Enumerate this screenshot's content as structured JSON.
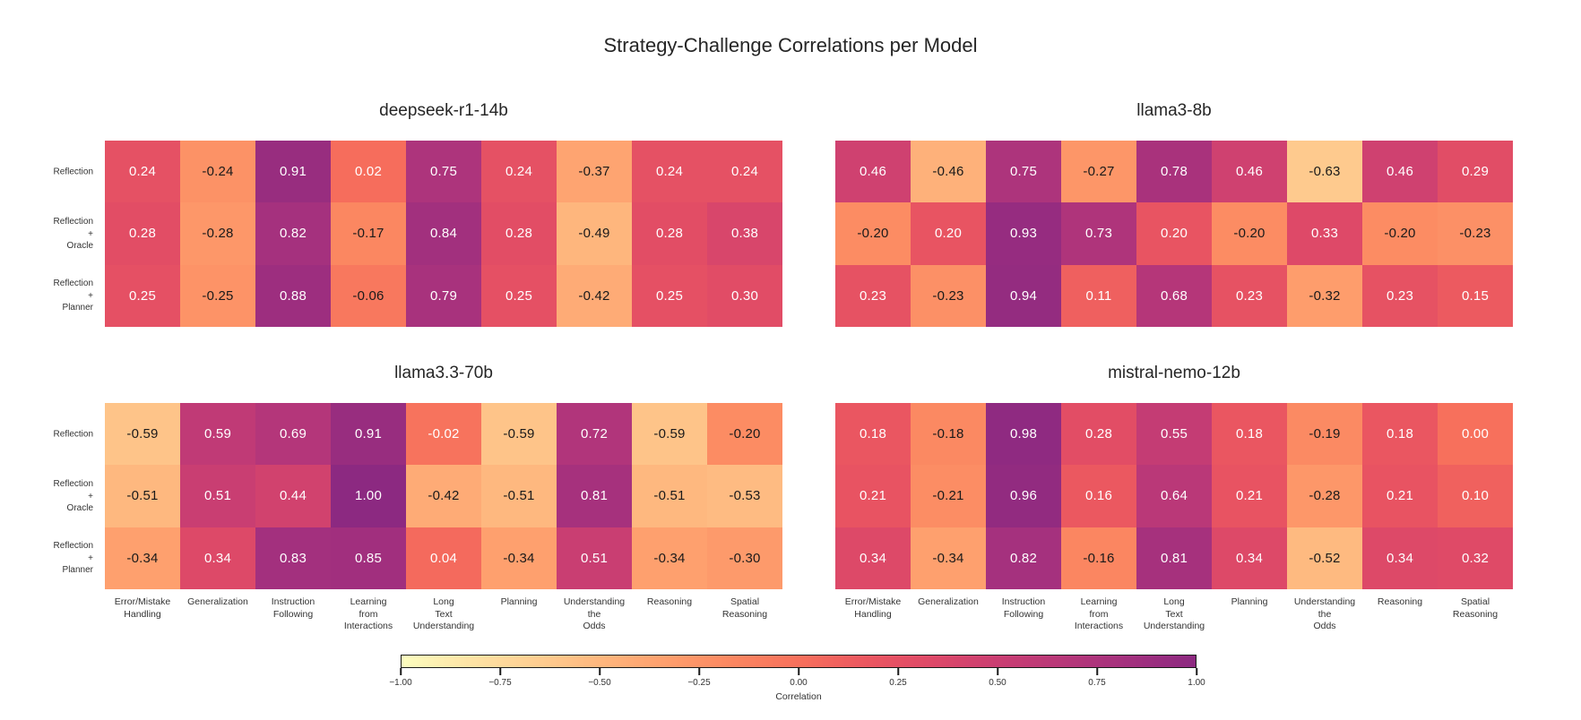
{
  "figure": {
    "title": "Strategy-Challenge Correlations per Model"
  },
  "axes": {
    "strategies": [
      "Reflection",
      "Reflection + Oracle",
      "Reflection + Planner"
    ],
    "strategy_display": [
      "Reflection",
      "Reflection\n+\nOracle",
      "Reflection\n+\nPlanner"
    ],
    "challenges": [
      "Error/Mistake Handling",
      "Generalization",
      "Instruction Following",
      "Learning from Interactions",
      "Long Text Understanding",
      "Planning",
      "Understanding the Odds",
      "Reasoning",
      "Spatial Reasoning"
    ],
    "challenge_display": [
      "Error/Mistake\nHandling",
      "Generalization",
      "Instruction\nFollowing",
      "Learning\nfrom\nInteractions",
      "Long\nText\nUnderstanding",
      "Planning",
      "Understanding\nthe\nOdds",
      "Reasoning",
      "Spatial\nReasoning"
    ]
  },
  "chart_data": {
    "type": "heatmap",
    "title": "Strategy-Challenge Correlations per Model",
    "value_range": [
      -1.0,
      1.0
    ],
    "rows": [
      "Reflection",
      "Reflection + Oracle",
      "Reflection + Planner"
    ],
    "columns": [
      "Error/Mistake Handling",
      "Generalization",
      "Instruction Following",
      "Learning from Interactions",
      "Long Text Understanding",
      "Planning",
      "Understanding the Odds",
      "Reasoning",
      "Spatial Reasoning"
    ],
    "panels": [
      {
        "title": "deepseek-r1-14b",
        "values": [
          [
            0.24,
            -0.24,
            0.91,
            0.02,
            0.75,
            0.24,
            -0.37,
            0.24,
            0.24
          ],
          [
            0.28,
            -0.28,
            0.82,
            -0.17,
            0.84,
            0.28,
            -0.49,
            0.28,
            0.38
          ],
          [
            0.25,
            -0.25,
            0.88,
            -0.06,
            0.79,
            0.25,
            -0.42,
            0.25,
            0.3
          ]
        ]
      },
      {
        "title": "llama3-8b",
        "values": [
          [
            0.46,
            -0.46,
            0.75,
            -0.27,
            0.78,
            0.46,
            -0.63,
            0.46,
            0.29
          ],
          [
            -0.2,
            0.2,
            0.93,
            0.73,
            0.2,
            -0.2,
            0.33,
            -0.2,
            -0.23
          ],
          [
            0.23,
            -0.23,
            0.94,
            0.11,
            0.68,
            0.23,
            -0.32,
            0.23,
            0.15
          ]
        ]
      },
      {
        "title": "llama3.3-70b",
        "values": [
          [
            -0.59,
            0.59,
            0.69,
            0.91,
            -0.02,
            -0.59,
            0.72,
            -0.59,
            -0.2
          ],
          [
            -0.51,
            0.51,
            0.44,
            1.0,
            -0.42,
            -0.51,
            0.81,
            -0.51,
            -0.53
          ],
          [
            -0.34,
            0.34,
            0.83,
            0.85,
            0.04,
            -0.34,
            0.51,
            -0.34,
            -0.3
          ]
        ]
      },
      {
        "title": "mistral-nemo-12b",
        "values": [
          [
            0.18,
            -0.18,
            0.98,
            0.28,
            0.55,
            0.18,
            -0.19,
            0.18,
            0.0
          ],
          [
            0.21,
            -0.21,
            0.96,
            0.16,
            0.64,
            0.21,
            -0.28,
            0.21,
            0.1
          ],
          [
            0.34,
            -0.34,
            0.82,
            -0.16,
            0.81,
            0.34,
            -0.52,
            0.34,
            0.32
          ]
        ]
      }
    ],
    "colormap_stops": [
      "#fcfdbf",
      "#fde4a6",
      "#fecf92",
      "#feb77e",
      "#fe9f6d",
      "#fb8761",
      "#f7705c",
      "#eb5760",
      "#de4968",
      "#ca3e72",
      "#b73779",
      "#a3307e",
      "#8c2981"
    ],
    "annotation_colors": {
      "light_text": "#ffffff",
      "dark_text": "#1a1a1a",
      "dark_text_below": -0.045
    },
    "colorbar": {
      "label": "Correlation",
      "ticks": [
        -1.0,
        -0.75,
        -0.5,
        -0.25,
        0.0,
        0.25,
        0.5,
        0.75,
        1.0
      ],
      "tick_labels": [
        "−1.00",
        "−0.75",
        "−0.50",
        "−0.25",
        "0.00",
        "0.25",
        "0.50",
        "0.75",
        "1.00"
      ]
    }
  }
}
